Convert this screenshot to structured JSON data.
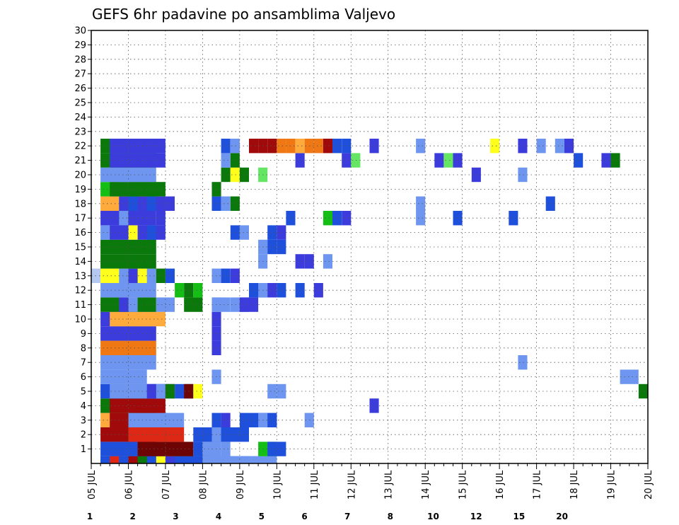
{
  "chart_data": {
    "type": "heatmap",
    "title": "GEFS 6hr padavine po ansamblima Valjevo",
    "xlabel": "",
    "ylabel": "",
    "x_ticks": [
      "05 JUL",
      "06 JUL",
      "07 JUL",
      "08 JUL",
      "09 JUL",
      "10 JUL",
      "11 JUL",
      "12 JUL",
      "13 JUL",
      "14 JUL",
      "15 JUL",
      "16 JUL",
      "17 JUL",
      "18 JUL",
      "19 JUL",
      "20 JUL"
    ],
    "y_ticks": [
      "1",
      "2",
      "3",
      "4",
      "5",
      "6",
      "7",
      "8",
      "9",
      "10",
      "11",
      "12",
      "13",
      "14",
      "15",
      "16",
      "17",
      "18",
      "19",
      "20",
      "21",
      "22",
      "23",
      "24",
      "25",
      "26",
      "27",
      "28",
      "29",
      "30"
    ],
    "xlim": [
      0,
      60
    ],
    "ylim": [
      0,
      30
    ],
    "grid": true,
    "colorbar": {
      "levels": [
        "1",
        "2",
        "3",
        "4",
        "5",
        "6",
        "7",
        "8",
        "10",
        "12",
        "15",
        "20"
      ],
      "colors": [
        "#b4c8f0",
        "#6e96f0",
        "#1e50dc",
        "#3c3cdc",
        "#64e664",
        "#14be14",
        "#0a780a",
        "#ffff1e",
        "#ffaa3c",
        "#f07814",
        "#dc2814",
        "#a00a0a",
        "#6e0505"
      ]
    },
    "cells": [
      [
        0,
        1,
        4,
        5
      ],
      [
        0,
        1,
        5,
        2
      ],
      [
        0,
        2,
        5,
        10
      ],
      [
        0,
        3,
        5,
        2
      ],
      [
        0,
        4,
        5,
        11
      ],
      [
        0,
        5,
        6,
        6
      ],
      [
        0,
        6,
        5,
        2
      ],
      [
        0,
        7,
        5,
        7
      ],
      [
        0,
        8,
        5,
        3
      ],
      [
        0,
        9,
        5,
        2
      ],
      [
        0,
        10,
        5,
        2
      ],
      [
        0,
        12,
        5,
        1
      ],
      [
        0,
        13,
        5,
        1
      ],
      [
        0,
        14,
        5,
        1
      ],
      [
        0,
        15,
        5,
        1
      ],
      [
        1,
        1,
        6,
        2
      ],
      [
        1,
        5,
        6,
        12
      ],
      [
        1,
        11,
        1,
        2
      ],
      [
        1,
        12,
        1,
        1
      ],
      [
        1,
        13,
        1,
        1
      ],
      [
        1,
        14,
        1,
        1
      ],
      [
        1,
        18,
        2,
        5
      ],
      [
        1,
        19,
        2,
        2
      ],
      [
        2,
        1,
        6,
        11
      ],
      [
        2,
        4,
        6,
        10
      ],
      [
        2,
        11,
        6,
        2
      ],
      [
        2,
        13,
        1,
        1
      ],
      [
        3,
        1,
        6,
        8
      ],
      [
        3,
        2,
        6,
        11
      ],
      [
        3,
        4,
        6,
        1
      ],
      [
        3,
        4,
        1,
        1
      ],
      [
        3,
        13,
        1,
        2
      ],
      [
        3,
        14,
        1,
        3
      ],
      [
        3,
        16,
        1,
        2
      ],
      [
        3,
        17,
        3,
        2
      ],
      [
        3,
        18,
        1,
        1
      ],
      [
        3,
        23,
        1,
        1
      ],
      [
        4,
        1,
        6,
        6
      ],
      [
        4,
        2,
        6,
        11
      ],
      [
        4,
        30,
        1,
        3
      ],
      [
        5,
        1,
        6,
        2
      ],
      [
        5,
        2,
        6,
        1
      ],
      [
        5,
        6,
        3,
        3
      ],
      [
        5,
        7,
        1,
        1
      ],
      [
        5,
        8,
        1,
        6
      ],
      [
        5,
        9,
        2,
        2
      ],
      [
        5,
        10,
        1,
        12
      ],
      [
        5,
        11,
        1,
        7
      ],
      [
        5,
        19,
        1,
        1
      ],
      [
        5,
        20,
        1,
        1
      ],
      [
        5,
        59,
        1,
        6
      ],
      [
        6,
        1,
        5,
        1
      ],
      [
        6,
        13,
        1,
        1
      ],
      [
        6,
        57,
        2,
        1
      ],
      [
        7,
        1,
        6,
        1
      ],
      [
        7,
        46,
        1,
        1
      ],
      [
        8,
        1,
        6,
        9
      ],
      [
        8,
        13,
        1,
        3
      ],
      [
        9,
        1,
        6,
        3
      ],
      [
        9,
        13,
        1,
        3
      ],
      [
        10,
        1,
        6,
        3
      ],
      [
        10,
        2,
        6,
        8
      ],
      [
        10,
        13,
        1,
        3
      ],
      [
        11,
        1,
        6,
        6
      ],
      [
        11,
        3,
        1,
        3
      ],
      [
        11,
        4,
        1,
        1
      ],
      [
        11,
        13,
        1,
        1
      ],
      [
        11,
        7,
        2,
        1
      ],
      [
        11,
        10,
        2,
        6
      ],
      [
        11,
        13,
        2,
        1
      ],
      [
        11,
        15,
        2,
        1
      ],
      [
        11,
        16,
        2,
        3
      ],
      [
        12,
        1,
        6,
        1
      ],
      [
        12,
        9,
        1,
        5
      ],
      [
        12,
        10,
        1,
        6
      ],
      [
        12,
        11,
        1,
        5
      ],
      [
        12,
        17,
        2,
        2
      ],
      [
        12,
        18,
        1,
        1
      ],
      [
        12,
        19,
        1,
        3
      ],
      [
        12,
        20,
        1,
        2
      ],
      [
        12,
        22,
        1,
        2
      ],
      [
        12,
        24,
        1,
        3
      ],
      [
        13,
        0,
        1,
        0
      ],
      [
        13,
        1,
        6,
        7
      ],
      [
        13,
        3,
        1,
        1
      ],
      [
        13,
        4,
        1,
        3
      ],
      [
        13,
        6,
        1,
        1
      ],
      [
        13,
        7,
        1,
        6
      ],
      [
        13,
        8,
        1,
        2
      ],
      [
        13,
        13,
        1,
        1
      ],
      [
        13,
        14,
        1,
        2
      ],
      [
        13,
        15,
        1,
        3
      ],
      [
        14,
        1,
        6,
        6
      ],
      [
        14,
        18,
        1,
        1
      ],
      [
        14,
        22,
        1,
        3
      ],
      [
        14,
        23,
        1,
        3
      ],
      [
        14,
        25,
        1,
        1
      ],
      [
        15,
        1,
        6,
        6
      ],
      [
        15,
        18,
        1,
        1
      ],
      [
        15,
        19,
        1,
        2
      ],
      [
        15,
        20,
        1,
        2
      ],
      [
        16,
        1,
        6,
        1
      ],
      [
        16,
        2,
        6,
        3
      ],
      [
        16,
        4,
        1,
        7
      ],
      [
        16,
        6,
        1,
        2
      ],
      [
        16,
        15,
        1,
        2
      ],
      [
        16,
        16,
        1,
        1
      ],
      [
        16,
        19,
        1,
        2
      ],
      [
        16,
        20,
        1,
        3
      ],
      [
        17,
        1,
        6,
        3
      ],
      [
        17,
        3,
        1,
        1
      ],
      [
        17,
        7,
        1,
        3
      ],
      [
        17,
        21,
        1,
        2
      ],
      [
        17,
        25,
        1,
        5
      ],
      [
        17,
        26,
        1,
        2
      ],
      [
        17,
        27,
        1,
        3
      ],
      [
        17,
        35,
        1,
        1
      ],
      [
        17,
        39,
        1,
        2
      ],
      [
        17,
        45,
        1,
        2
      ],
      [
        18,
        1,
        6,
        8
      ],
      [
        18,
        3,
        6,
        3
      ],
      [
        18,
        4,
        1,
        2
      ],
      [
        18,
        6,
        1,
        2
      ],
      [
        18,
        13,
        1,
        2
      ],
      [
        18,
        14,
        1,
        1
      ],
      [
        18,
        15,
        1,
        6
      ],
      [
        18,
        35,
        1,
        1
      ],
      [
        18,
        49,
        1,
        2
      ],
      [
        19,
        1,
        6,
        5
      ],
      [
        19,
        2,
        6,
        6
      ],
      [
        19,
        13,
        1,
        6
      ],
      [
        20,
        1,
        6,
        1
      ],
      [
        20,
        3,
        1,
        1
      ],
      [
        20,
        14,
        1,
        6
      ],
      [
        20,
        15,
        1,
        7
      ],
      [
        20,
        16,
        1,
        6
      ],
      [
        20,
        18,
        1,
        4
      ],
      [
        20,
        41,
        1,
        3
      ],
      [
        20,
        46,
        1,
        1
      ],
      [
        21,
        1,
        6,
        6
      ],
      [
        21,
        2,
        6,
        3
      ],
      [
        21,
        14,
        1,
        1
      ],
      [
        21,
        15,
        1,
        6
      ],
      [
        21,
        22,
        1,
        3
      ],
      [
        21,
        27,
        1,
        3
      ],
      [
        21,
        28,
        1,
        4
      ],
      [
        21,
        37,
        1,
        3
      ],
      [
        21,
        38,
        1,
        4
      ],
      [
        21,
        39,
        1,
        3
      ],
      [
        21,
        52,
        1,
        2
      ],
      [
        21,
        55,
        1,
        3
      ],
      [
        21,
        56,
        1,
        6
      ],
      [
        22,
        1,
        6,
        6
      ],
      [
        22,
        2,
        6,
        3
      ],
      [
        22,
        14,
        1,
        2
      ],
      [
        22,
        15,
        1,
        1
      ],
      [
        22,
        17,
        1,
        11
      ],
      [
        22,
        18,
        1,
        11
      ],
      [
        22,
        19,
        1,
        11
      ],
      [
        22,
        20,
        1,
        9
      ],
      [
        22,
        21,
        1,
        9
      ],
      [
        22,
        22,
        1,
        8
      ],
      [
        22,
        23,
        1,
        9
      ],
      [
        22,
        24,
        1,
        9
      ],
      [
        22,
        25,
        1,
        11
      ],
      [
        22,
        26,
        1,
        2
      ],
      [
        22,
        27,
        1,
        2
      ],
      [
        22,
        30,
        1,
        3
      ],
      [
        22,
        35,
        1,
        1
      ],
      [
        22,
        43,
        1,
        7
      ],
      [
        22,
        46,
        1,
        3
      ],
      [
        22,
        48,
        1,
        1
      ],
      [
        22,
        50,
        1,
        1
      ],
      [
        22,
        51,
        1,
        3
      ]
    ],
    "series": []
  }
}
